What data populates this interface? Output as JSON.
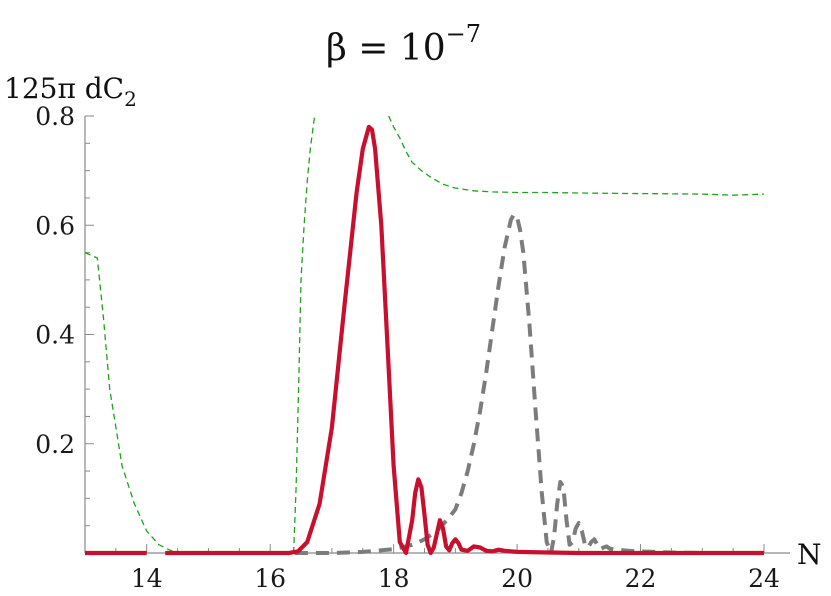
{
  "chart_data": {
    "type": "line",
    "title": "β = 10",
    "title_exponent": "−7",
    "xlabel": "N",
    "ylabel": "125π dC",
    "ylabel_subscript": "2",
    "xlim": [
      13,
      24
    ],
    "ylim": [
      0,
      0.8
    ],
    "xticks": [
      14,
      16,
      18,
      20,
      22,
      24
    ],
    "yticks": [
      0.2,
      0.4,
      0.6,
      0.8
    ],
    "xtick_labels": [
      "14",
      "16",
      "18",
      "20",
      "22",
      "24"
    ],
    "ytick_labels": [
      "0.2",
      "0.4",
      "0.6",
      "0.8"
    ],
    "grid": false,
    "series": [
      {
        "color": "#22a01e",
        "style": "dashed-thin",
        "segments": [
          {
            "x": [
              13.0,
              13.1,
              13.2,
              13.3,
              13.4,
              13.5,
              13.6,
              13.8,
              14.0,
              14.2,
              14.4,
              14.6,
              15.0,
              15.5,
              16.0,
              16.3,
              16.38
            ],
            "y": [
              0.55,
              0.545,
              0.54,
              0.43,
              0.3,
              0.23,
              0.16,
              0.09,
              0.04,
              0.015,
              0.004,
              0.001,
              0.0,
              0.0,
              0.0,
              0.0,
              0.0
            ]
          },
          {
            "x": [
              16.38,
              16.42,
              16.46,
              16.5,
              16.55,
              16.6,
              16.65,
              16.72
            ],
            "y": [
              0.0,
              0.12,
              0.3,
              0.5,
              0.6,
              0.68,
              0.74,
              0.8
            ]
          },
          {
            "x": [
              17.92,
              18.0,
              18.1,
              18.2,
              18.3,
              18.45,
              18.6,
              18.8,
              19.0,
              19.3,
              19.6,
              20.0,
              20.5,
              21.0,
              22.0,
              23.0,
              23.5,
              24.0
            ],
            "y": [
              0.8,
              0.78,
              0.76,
              0.735,
              0.715,
              0.7,
              0.688,
              0.675,
              0.668,
              0.663,
              0.661,
              0.66,
              0.66,
              0.659,
              0.658,
              0.657,
              0.655,
              0.657
            ]
          }
        ]
      },
      {
        "color": "#7c7c7c",
        "style": "dashed-thick",
        "segments": [
          {
            "x": [
              16.4,
              17.0,
              17.5,
              18.0,
              18.3,
              18.5,
              18.7,
              18.9,
              19.0,
              19.1,
              19.2,
              19.3,
              19.4,
              19.5,
              19.6,
              19.7,
              19.8,
              19.9,
              19.95,
              20.0,
              20.05,
              20.1,
              20.2,
              20.3,
              20.4,
              20.48,
              20.55,
              20.6,
              20.65,
              20.7,
              20.75,
              20.8,
              20.85,
              20.9,
              20.95,
              21.0,
              21.05,
              21.1,
              21.15,
              21.2,
              21.25,
              21.3,
              21.35,
              21.4,
              21.45,
              21.5,
              21.6,
              21.8,
              22.0,
              22.5,
              23.0,
              24.0
            ],
            "y": [
              0.0,
              0.0,
              0.002,
              0.007,
              0.015,
              0.025,
              0.04,
              0.065,
              0.08,
              0.11,
              0.15,
              0.2,
              0.26,
              0.33,
              0.41,
              0.49,
              0.56,
              0.61,
              0.62,
              0.615,
              0.59,
              0.55,
              0.42,
              0.26,
              0.11,
              0.02,
              0.0,
              0.03,
              0.09,
              0.13,
              0.12,
              0.06,
              0.015,
              0.02,
              0.045,
              0.055,
              0.04,
              0.015,
              0.01,
              0.02,
              0.025,
              0.015,
              0.007,
              0.01,
              0.012,
              0.008,
              0.006,
              0.004,
              0.003,
              0.001,
              0.0,
              0.0
            ]
          }
        ]
      },
      {
        "color": "#c8102e",
        "style": "solid-thick",
        "segments": [
          {
            "x": [
              13.0,
              14.0
            ],
            "y": [
              0.0,
              0.0
            ]
          },
          {
            "x": [
              14.3,
              16.3,
              16.45,
              16.6,
              16.8,
              17.0,
              17.2,
              17.4,
              17.5,
              17.6,
              17.65,
              17.7,
              17.8,
              17.9,
              18.0,
              18.1,
              18.2,
              18.3,
              18.35,
              18.4,
              18.45,
              18.5,
              18.55,
              18.6,
              18.65,
              18.7,
              18.75,
              18.8,
              18.85,
              18.9,
              18.95,
              19.0,
              19.05,
              19.1,
              19.2,
              19.3,
              19.4,
              19.5,
              19.6,
              19.7,
              19.8,
              20.0,
              20.5,
              21.0,
              24.0
            ],
            "y": [
              0.0,
              0.0,
              0.003,
              0.02,
              0.09,
              0.23,
              0.45,
              0.66,
              0.74,
              0.78,
              0.775,
              0.74,
              0.6,
              0.38,
              0.16,
              0.02,
              0.0,
              0.06,
              0.11,
              0.135,
              0.12,
              0.07,
              0.015,
              0.0,
              0.01,
              0.035,
              0.06,
              0.045,
              0.012,
              0.005,
              0.018,
              0.025,
              0.018,
              0.006,
              0.004,
              0.012,
              0.01,
              0.004,
              0.003,
              0.006,
              0.004,
              0.002,
              0.001,
              0.0,
              0.0
            ]
          }
        ]
      }
    ]
  }
}
